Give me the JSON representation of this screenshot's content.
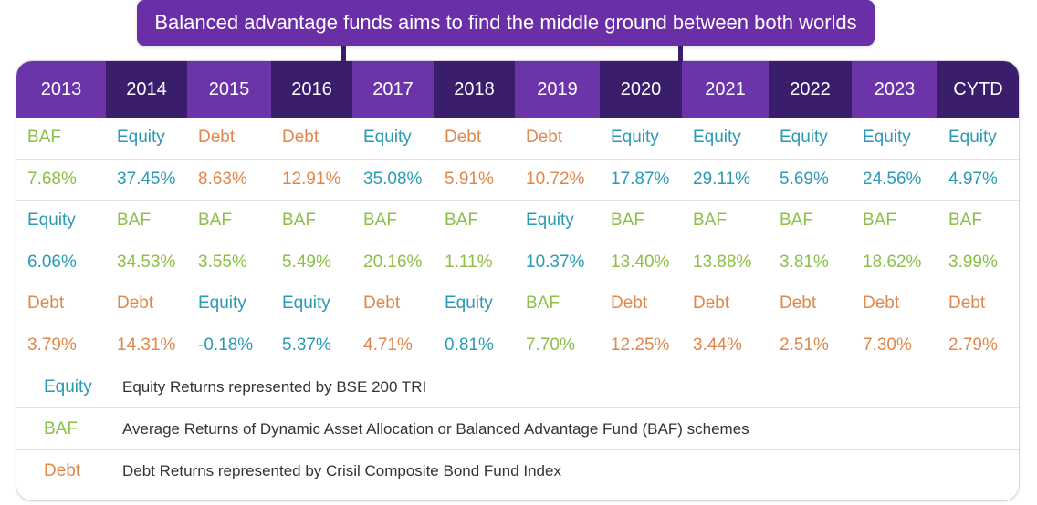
{
  "title": "Balanced advantage funds aims to find the middle ground between both worlds",
  "colors": {
    "header_light": "#6b34a8",
    "header_dark": "#3a1d6b",
    "equity": "#2a9bb4",
    "baf": "#8cbf47",
    "debt": "#e0874a"
  },
  "chart_data": {
    "type": "table",
    "title": "Balanced advantage funds aims to find the middle ground between both worlds",
    "columns": [
      "2013",
      "2014",
      "2015",
      "2016",
      "2017",
      "2018",
      "2019",
      "2020",
      "2021",
      "2022",
      "2023",
      "CYTD"
    ],
    "ranks": [
      {
        "labels": [
          "BAF",
          "Equity",
          "Debt",
          "Debt",
          "Equity",
          "Debt",
          "Debt",
          "Equity",
          "Equity",
          "Equity",
          "Equity",
          "Equity"
        ],
        "values": [
          "7.68%",
          "37.45%",
          "8.63%",
          "12.91%",
          "35.08%",
          "5.91%",
          "10.72%",
          "17.87%",
          "29.11%",
          "5.69%",
          "24.56%",
          "4.97%"
        ]
      },
      {
        "labels": [
          "Equity",
          "BAF",
          "BAF",
          "BAF",
          "BAF",
          "BAF",
          "Equity",
          "BAF",
          "BAF",
          "BAF",
          "BAF",
          "BAF"
        ],
        "values": [
          "6.06%",
          "34.53%",
          "3.55%",
          "5.49%",
          "20.16%",
          "1.11%",
          "10.37%",
          "13.40%",
          "13.88%",
          "3.81%",
          "18.62%",
          "3.99%"
        ]
      },
      {
        "labels": [
          "Debt",
          "Debt",
          "Equity",
          "Equity",
          "Debt",
          "Equity",
          "BAF",
          "Debt",
          "Debt",
          "Debt",
          "Debt",
          "Debt"
        ],
        "values": [
          "3.79%",
          "14.31%",
          "-0.18%",
          "5.37%",
          "4.71%",
          "0.81%",
          "7.70%",
          "12.25%",
          "3.44%",
          "2.51%",
          "7.30%",
          "2.79%"
        ]
      }
    ],
    "legend": [
      {
        "key": "Equity",
        "text": "Equity Returns represented by BSE 200 TRI"
      },
      {
        "key": "BAF",
        "text": "Average Returns of Dynamic Asset Allocation or Balanced Advantage Fund (BAF) schemes"
      },
      {
        "key": "Debt",
        "text": "Debt Returns represented by Crisil Composite Bond Fund Index"
      }
    ]
  }
}
